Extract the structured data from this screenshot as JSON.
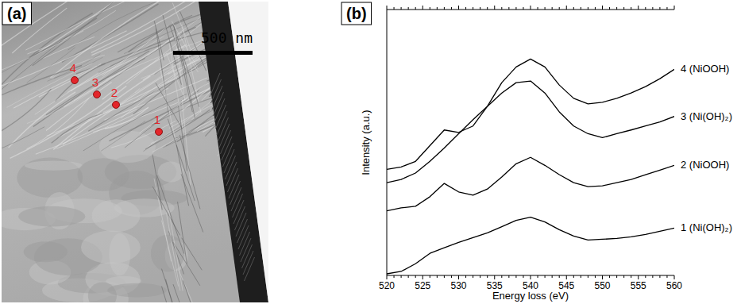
{
  "panels": [
    "(a)",
    "(b)"
  ],
  "image": {
    "scale_bar": "500 nm",
    "points": [
      "1",
      "2",
      "3",
      "4"
    ]
  },
  "chart_data": {
    "type": "line",
    "x_label": "Energy loss (eV)",
    "y_label": "Intensity (a.u.)",
    "x": [
      520,
      522,
      524,
      526,
      528,
      530,
      532,
      534,
      536,
      538,
      540,
      542,
      544,
      546,
      548,
      550,
      552,
      554,
      556,
      558,
      560
    ],
    "xlim": [
      520,
      560
    ],
    "xticks": [
      520,
      525,
      530,
      535,
      540,
      545,
      550,
      555,
      560
    ],
    "ylim": [
      0,
      100
    ],
    "tick_labels": "x",
    "grid": false,
    "legend": "right",
    "series": [
      {
        "name": "4 (NiOOH)",
        "color": "#000000",
        "values": [
          39.9,
          40.8,
          42.9,
          48.8,
          54.7,
          53.8,
          56.2,
          63.6,
          72.5,
          78.4,
          81.4,
          78.4,
          71.6,
          66.6,
          64.5,
          65.1,
          66.6,
          68.6,
          71.0,
          74.0,
          77.5
        ]
      },
      {
        "name": "3 (Ni(OH)₂)",
        "color": "#000000",
        "values": [
          34.9,
          36.1,
          38.5,
          42.9,
          47.9,
          53.3,
          58.6,
          63.6,
          68.6,
          72.5,
          73.1,
          68.6,
          61.5,
          56.2,
          53.3,
          51.8,
          53.3,
          54.7,
          56.2,
          57.7,
          59.8
        ]
      },
      {
        "name": "2 (NiOOH)",
        "color": "#000000",
        "values": [
          24.3,
          25.4,
          26.0,
          29.6,
          34.6,
          31.4,
          30.2,
          32.5,
          37.0,
          42.0,
          44.4,
          41.4,
          37.9,
          34.9,
          33.4,
          33.7,
          34.9,
          36.1,
          37.9,
          39.6,
          41.4
        ]
      },
      {
        "name": "1 (Ni(OH)₂)",
        "color": "#000000",
        "values": [
          0.6,
          1.5,
          4.4,
          8.3,
          10.4,
          12.4,
          14.2,
          16.0,
          18.3,
          20.7,
          21.9,
          20.1,
          17.2,
          14.8,
          13.3,
          13.6,
          13.9,
          14.5,
          15.4,
          16.6,
          17.8
        ]
      }
    ]
  }
}
